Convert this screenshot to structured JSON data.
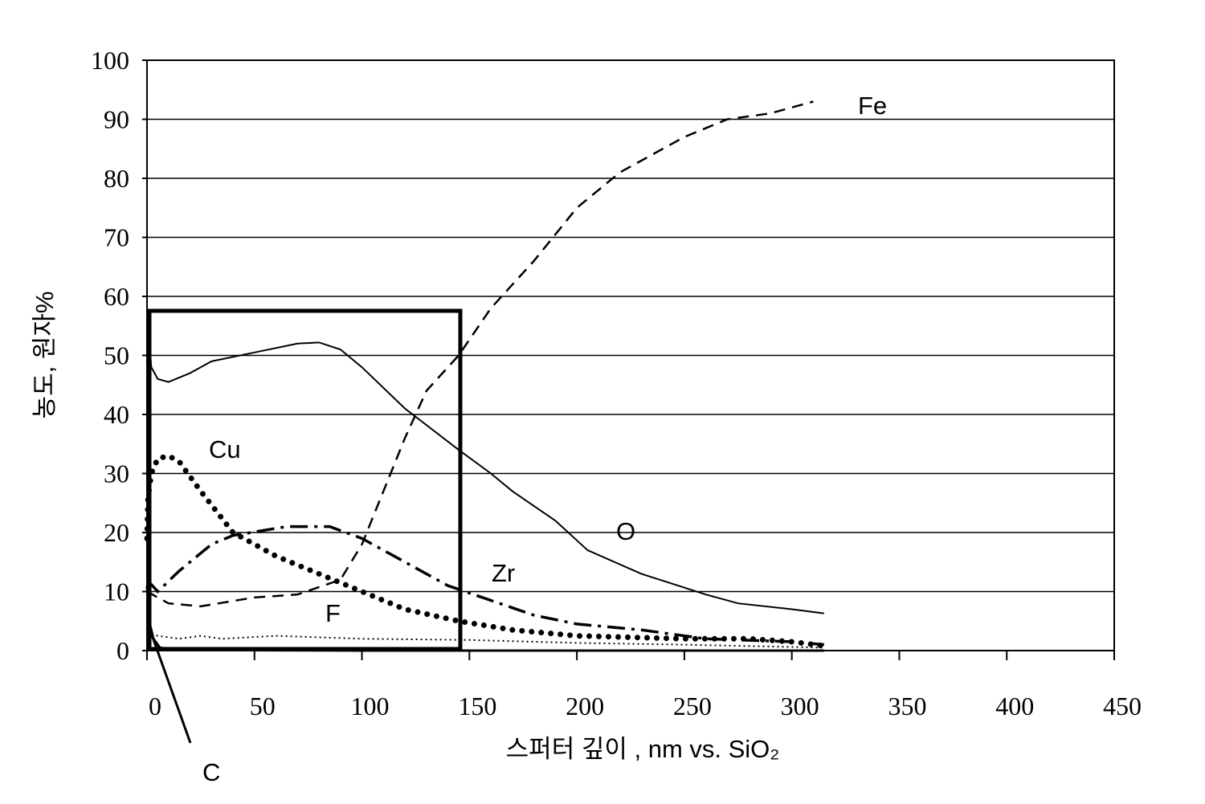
{
  "chart_data": {
    "type": "line",
    "xlabel": "스퍼터 깊이 , nm vs. SiO₂",
    "ylabel": "농도, 원자%",
    "xlim": [
      0,
      450
    ],
    "xticks": [
      0,
      50,
      100,
      150,
      200,
      250,
      300,
      350,
      400,
      450
    ],
    "ylim": [
      0,
      100
    ],
    "yticks": [
      0,
      10,
      20,
      30,
      40,
      50,
      60,
      70,
      80,
      90,
      100
    ],
    "grid": true,
    "series": [
      {
        "name": "Fe",
        "color": "#000000",
        "style": "dashed",
        "x": [
          0,
          10,
          25,
          50,
          70,
          90,
          100,
          110,
          120,
          130,
          145,
          160,
          180,
          200,
          220,
          250,
          270,
          290,
          310
        ],
        "values": [
          10,
          8,
          7.5,
          9,
          9.5,
          12,
          18,
          27,
          36,
          44,
          50,
          58,
          66,
          75,
          81,
          87,
          90,
          91,
          93
        ]
      },
      {
        "name": "O",
        "color": "#000000",
        "style": "solid",
        "x": [
          0,
          2,
          5,
          10,
          20,
          30,
          50,
          70,
          80,
          90,
          100,
          120,
          145,
          160,
          170,
          190,
          205,
          230,
          260,
          275,
          300,
          315
        ],
        "values": [
          57,
          48,
          46,
          45.5,
          47,
          49,
          50.5,
          52,
          52.2,
          51,
          48,
          41,
          34,
          30,
          27,
          22,
          17,
          13,
          9.5,
          8,
          7,
          6.3
        ]
      },
      {
        "name": "Cu",
        "color": "#000000",
        "style": "dotted",
        "x": [
          0,
          0.5,
          2,
          5,
          10,
          15,
          25,
          40,
          60,
          80,
          100,
          120,
          145,
          170,
          200,
          250,
          280,
          300,
          315
        ],
        "values": [
          19,
          26,
          30,
          32.5,
          33,
          32,
          27,
          20,
          16,
          13,
          10,
          7,
          5,
          3.5,
          2.5,
          2,
          2,
          1.5,
          0.8
        ]
      },
      {
        "name": "Zr",
        "color": "#000000",
        "style": "dashdot",
        "x": [
          0,
          5,
          15,
          30,
          40,
          65,
          85,
          100,
          120,
          140,
          160,
          180,
          200,
          230,
          260,
          300,
          315
        ],
        "values": [
          12,
          10,
          13.5,
          18,
          19.5,
          21,
          21,
          19,
          15,
          11,
          8.5,
          6,
          4.5,
          3.5,
          2,
          1.5,
          1
        ]
      },
      {
        "name": "F",
        "color": "#000000",
        "style": "finedot",
        "x": [
          0,
          5,
          15,
          25,
          35,
          60,
          100,
          150,
          200,
          250,
          315
        ],
        "values": [
          3,
          2.5,
          2,
          2.5,
          2,
          2.5,
          2,
          1.8,
          1.3,
          1,
          0.5
        ]
      },
      {
        "name": "C",
        "color": "#000000",
        "style": "solid-thick",
        "x": [
          0,
          1,
          3,
          6,
          15,
          100,
          315
        ],
        "values": [
          11,
          5,
          2,
          0.5,
          0.1,
          0,
          0
        ]
      }
    ]
  }
}
